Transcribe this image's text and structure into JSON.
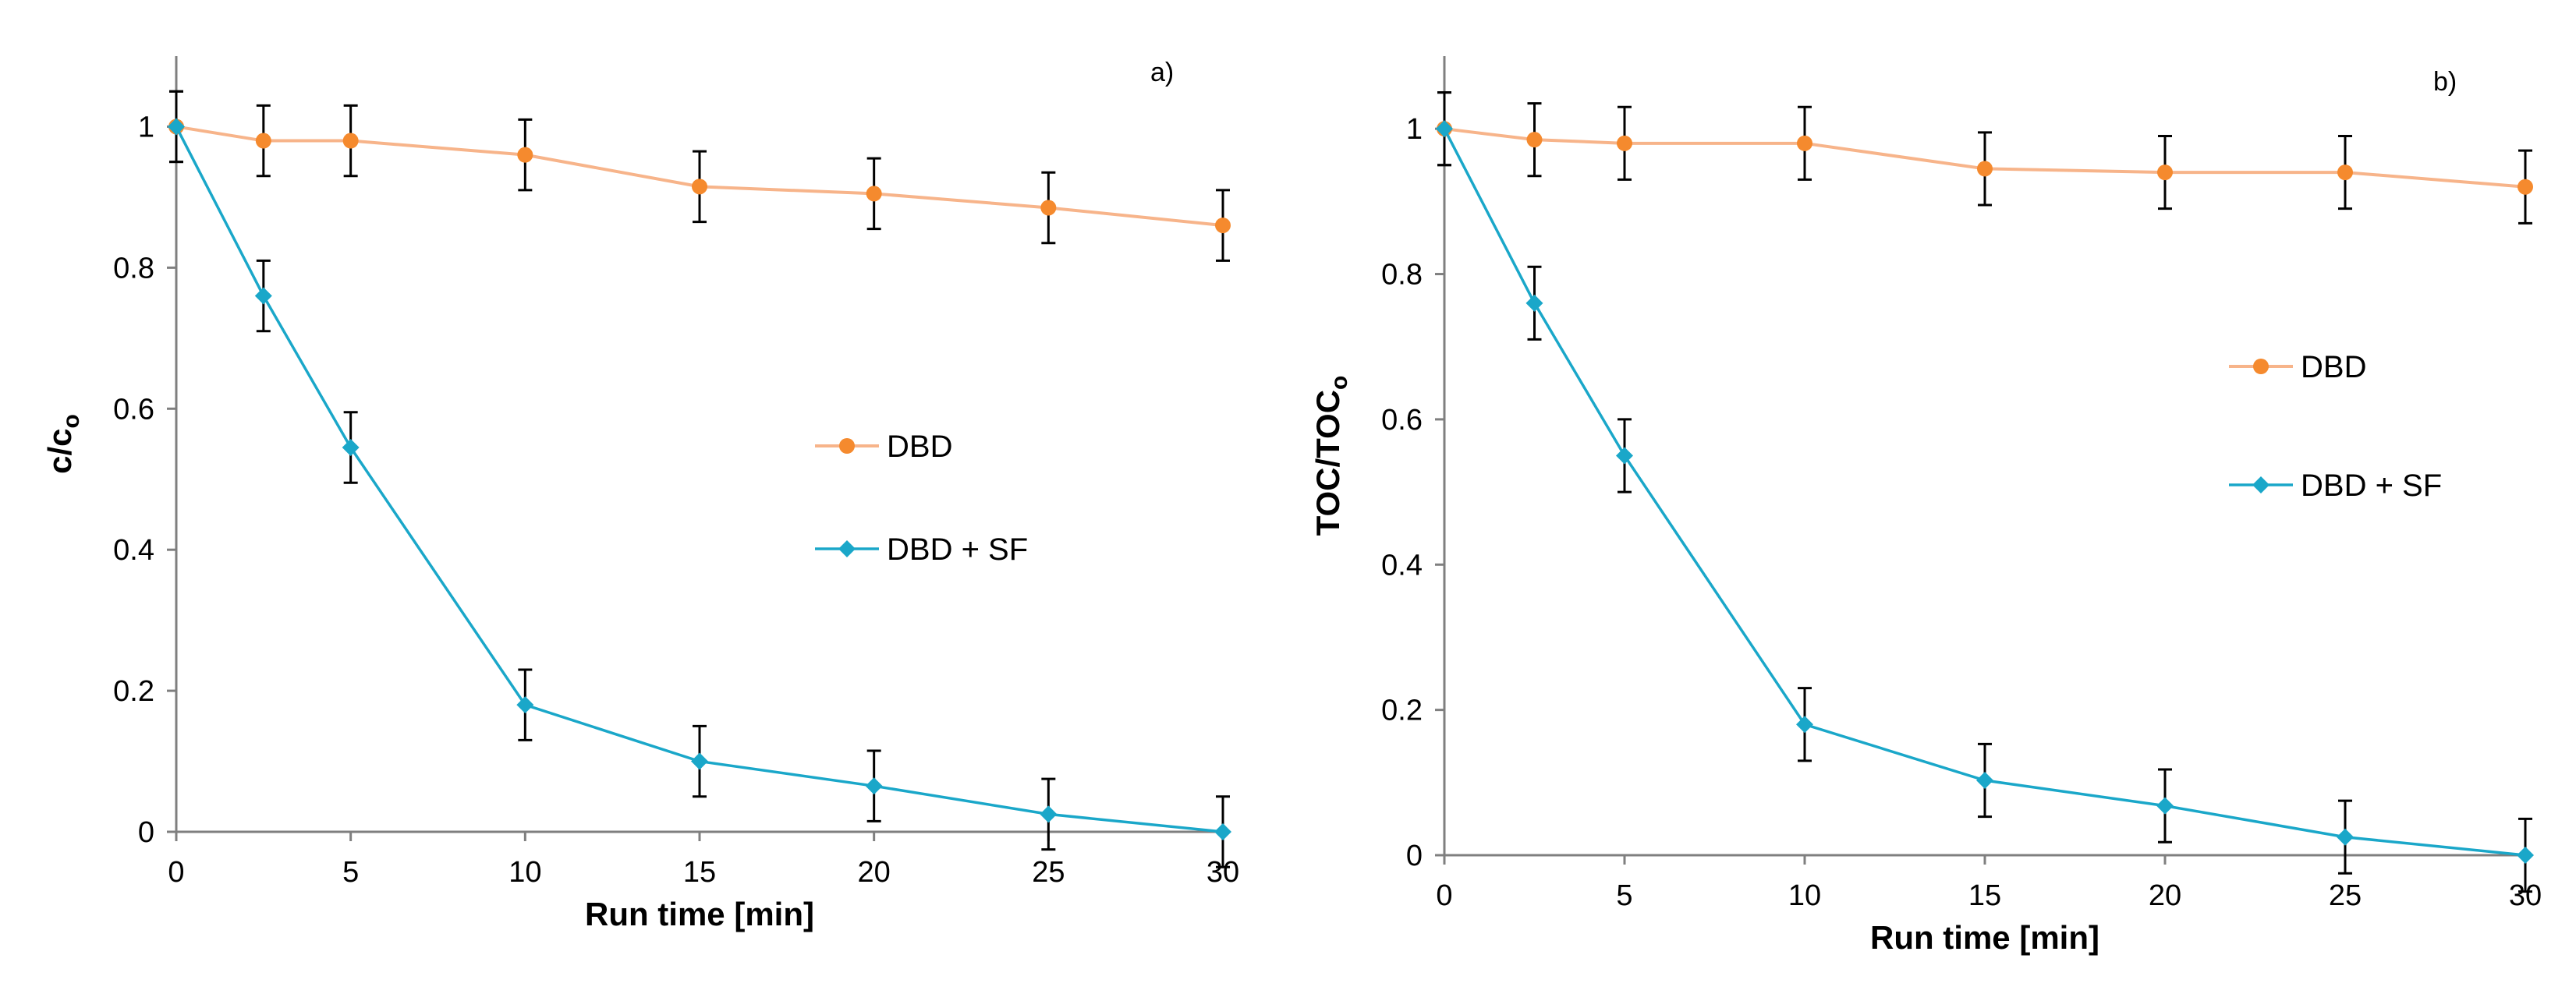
{
  "colors": {
    "dbd": "#F58A2E",
    "dbd_line": "#F7B48A",
    "dbd_sf": "#1AA7C9",
    "axis": "#7F7F7F",
    "error_bar": "#000000"
  },
  "chart_data": [
    {
      "type": "line",
      "panel_label": "a)",
      "xlabel": "Run time [min]",
      "ylabel_main": "c/c",
      "ylabel_sub": "o",
      "xlim": [
        0,
        30
      ],
      "ylim": [
        0,
        1.1
      ],
      "xticks": [
        0,
        5,
        10,
        15,
        20,
        25,
        30
      ],
      "yticks": [
        0,
        0.2,
        0.4,
        0.6,
        0.8,
        1
      ],
      "ytick_labels": [
        "0",
        "0.2",
        "0.4",
        "0.6",
        "0.8",
        "1"
      ],
      "legend_placement": "center-right",
      "series": [
        {
          "name": "DBD",
          "marker": "circle",
          "x": [
            0,
            2.5,
            5,
            10,
            15,
            20,
            25,
            30
          ],
          "values": [
            1.0,
            0.98,
            0.98,
            0.96,
            0.915,
            0.905,
            0.885,
            0.86
          ],
          "errors": [
            0.05,
            0.05,
            0.05,
            0.05,
            0.05,
            0.05,
            0.05,
            0.05
          ]
        },
        {
          "name": "DBD + SF",
          "marker": "diamond",
          "x": [
            0,
            2.5,
            5,
            10,
            15,
            20,
            25,
            30
          ],
          "values": [
            1.0,
            0.76,
            0.545,
            0.18,
            0.1,
            0.065,
            0.025,
            0.0
          ],
          "errors": [
            0.05,
            0.05,
            0.05,
            0.05,
            0.05,
            0.05,
            0.05,
            0.05
          ]
        }
      ]
    },
    {
      "type": "line",
      "panel_label": "b)",
      "xlabel": "Run time [min]",
      "ylabel_main": "TOC/TOC",
      "ylabel_sub": "o",
      "xlim": [
        0,
        30
      ],
      "ylim": [
        0,
        1.1
      ],
      "xticks": [
        0,
        5,
        10,
        15,
        20,
        25,
        30
      ],
      "yticks": [
        0,
        0.2,
        0.4,
        0.6,
        0.8,
        1
      ],
      "ytick_labels": [
        "0",
        "0.2",
        "0.4",
        "0.6",
        "0.8",
        "1"
      ],
      "legend_placement": "upper-right",
      "series": [
        {
          "name": "DBD",
          "marker": "circle",
          "x": [
            0,
            2.5,
            5,
            10,
            15,
            20,
            25,
            30
          ],
          "values": [
            1.0,
            0.985,
            0.98,
            0.98,
            0.945,
            0.94,
            0.94,
            0.92
          ],
          "errors": [
            0.05,
            0.05,
            0.05,
            0.05,
            0.05,
            0.05,
            0.05,
            0.05
          ]
        },
        {
          "name": "DBD + SF",
          "marker": "diamond",
          "x": [
            0,
            2.5,
            5,
            10,
            15,
            20,
            25,
            30
          ],
          "values": [
            1.0,
            0.76,
            0.55,
            0.18,
            0.103,
            0.068,
            0.025,
            0.0
          ],
          "errors": [
            0.05,
            0.05,
            0.05,
            0.05,
            0.05,
            0.05,
            0.05,
            0.05
          ]
        }
      ]
    }
  ]
}
